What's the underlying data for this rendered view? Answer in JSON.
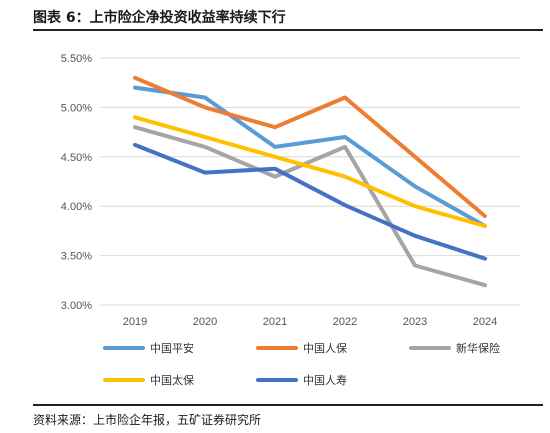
{
  "figure": {
    "title": "图表 6：上市险企净投资收益率持续下行",
    "source": "资料来源：上市险企年报，五矿证券研究所"
  },
  "chart_data": {
    "type": "line",
    "title": "",
    "xlabel": "",
    "ylabel": "",
    "x": [
      "2019",
      "2020",
      "2021",
      "2022",
      "2023",
      "2024"
    ],
    "ylim": [
      3.0,
      5.5
    ],
    "yticks": [
      "3.00%",
      "3.50%",
      "4.00%",
      "4.50%",
      "5.00%",
      "5.50%"
    ],
    "grid": true,
    "legend_position": "bottom",
    "series": [
      {
        "name": "中国平安",
        "color": "#5B9BD5",
        "values": [
          5.2,
          5.1,
          4.6,
          4.7,
          4.2,
          3.8
        ]
      },
      {
        "name": "中国人保",
        "color": "#ED7D31",
        "values": [
          5.3,
          5.0,
          4.8,
          5.1,
          4.5,
          3.9
        ]
      },
      {
        "name": "新华保险",
        "color": "#A5A5A5",
        "values": [
          4.8,
          4.6,
          4.3,
          4.6,
          3.4,
          3.2
        ]
      },
      {
        "name": "中国太保",
        "color": "#FFC000",
        "values": [
          4.9,
          4.7,
          4.5,
          4.3,
          4.0,
          3.8
        ]
      },
      {
        "name": "中国人寿",
        "color": "#4472C4",
        "values": [
          4.62,
          4.34,
          4.38,
          4.01,
          3.7,
          3.47
        ]
      }
    ]
  }
}
